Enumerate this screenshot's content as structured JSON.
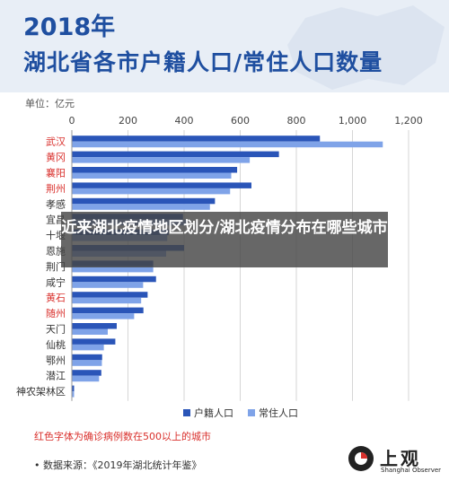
{
  "header": {
    "year": "2018年",
    "title": "湖北省各市户籍人口/常住人口数量"
  },
  "overlay_text": "近来湖北疫情地区划分/湖北疫情分布在哪些城市",
  "footnote": "红色字体为确诊病例数在500以上的城市",
  "source": "•  数据来源：《2019年湖北统计年鉴》",
  "logo": {
    "name": "上观",
    "en": "Shanghai Observer"
  },
  "colors": {
    "registered": "#2a55b8",
    "resident": "#7fa3e8",
    "highlight_label": "#d9302c",
    "normal_label": "#333333",
    "header_bg": "#e8eef6",
    "title": "#1f4fa0"
  },
  "chart_data": {
    "type": "bar",
    "orientation": "horizontal",
    "unit": "单位：亿元",
    "xlim": [
      0,
      1200
    ],
    "xticks": [
      0,
      200,
      400,
      600,
      800,
      1000,
      1200
    ],
    "xtick_labels": [
      "0",
      "200",
      "400",
      "600",
      "800",
      "1,000",
      "1,200"
    ],
    "grid": true,
    "legend_position": "bottom",
    "categories": [
      "武汉",
      "黄冈",
      "襄阳",
      "荆州",
      "孝感",
      "宜昌",
      "十堰",
      "恩施",
      "荆门",
      "咸宁",
      "黄石",
      "随州",
      "天门",
      "仙桃",
      "鄂州",
      "潜江",
      "神农架林区"
    ],
    "highlighted": [
      "武汉",
      "黄冈",
      "襄阳",
      "荆州",
      "黄石",
      "随州"
    ],
    "series": [
      {
        "name": "户籍人口",
        "values": [
          884,
          738,
          589,
          640,
          510,
          396,
          345,
          400,
          290,
          300,
          270,
          255,
          160,
          155,
          108,
          105,
          8
        ]
      },
      {
        "name": "常住人口",
        "values": [
          1108,
          634,
          568,
          564,
          492,
          413,
          340,
          336,
          290,
          254,
          247,
          222,
          128,
          114,
          107,
          97,
          8
        ]
      }
    ]
  }
}
